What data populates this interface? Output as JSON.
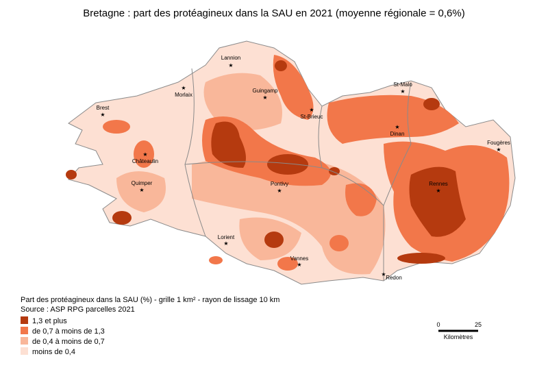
{
  "title": "Bretagne : part des protéagineux dans la SAU en 2021 (moyenne régionale = 0,6%)",
  "cities": [
    "Lannion",
    "Morlaix",
    "Guingamp",
    "Brest",
    "St-Malo",
    "St-Brieuc",
    "Dinan",
    "Châteaulin",
    "Fougères",
    "Quimper",
    "Rennes",
    "Pontivy",
    "Lorient",
    "Vannes",
    "Redon"
  ],
  "legend": {
    "caption": "Part des protéagineux dans la SAU (%) - grille 1 km² - rayon de lissage 10 km",
    "source": "Source : ASP RPG parcelles 2021",
    "items": [
      {
        "label": "1,3 et plus",
        "color": "#b53a0f"
      },
      {
        "label": "de 0,7 à moins de 1,3",
        "color": "#f2774a"
      },
      {
        "label": "de 0,4 à moins de 0,7",
        "color": "#f9b79a"
      },
      {
        "label": "moins de 0,4",
        "color": "#fde0d3"
      }
    ]
  },
  "scale_bar": {
    "ticks": [
      0,
      25
    ],
    "unit": "Kilomètres"
  }
}
